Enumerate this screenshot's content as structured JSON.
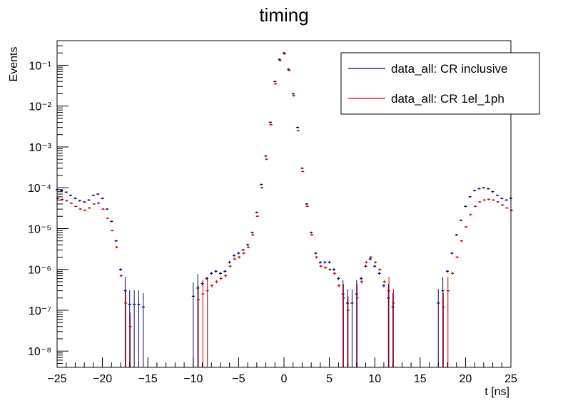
{
  "chart_data": {
    "type": "line",
    "title": "timing",
    "xlabel": "t [ns]",
    "ylabel": "Events",
    "xlim": [
      -25,
      25
    ],
    "ylim": [
      4e-09,
      0.4
    ],
    "yscale": "log",
    "grid": false,
    "legend_position": "top-right",
    "x_tick_labels": [
      "−25",
      "−20",
      "−15",
      "−10",
      "−5",
      "0",
      "5",
      "10",
      "15",
      "20",
      "25"
    ],
    "x_tick_values": [
      -25,
      -20,
      -15,
      -10,
      -5,
      0,
      5,
      10,
      15,
      20,
      25
    ],
    "y_tick_decades": [
      -8,
      -7,
      -6,
      -5,
      -4,
      -3,
      -2,
      -1
    ],
    "y_tick_labels": [
      "10⁻⁸",
      "10⁻⁷",
      "10⁻⁶",
      "10⁻⁵",
      "10⁻⁴",
      "10⁻³",
      "10⁻²",
      "10⁻¹"
    ],
    "series": [
      {
        "name": "data_all: CR inclusive",
        "color": "#000080",
        "x": [
          -25,
          -24.5,
          -24,
          -23.5,
          -23,
          -22.5,
          -22,
          -21.5,
          -21,
          -20.5,
          -20,
          -19.5,
          -19,
          -18.5,
          -18,
          -17.5,
          -17,
          -16.5,
          -16,
          -15.5,
          -10,
          -9.5,
          -9,
          -8.5,
          -8,
          -7.5,
          -7,
          -6.5,
          -6,
          -5.5,
          -5,
          -4.5,
          -4,
          -3.5,
          -3,
          -2.5,
          -2,
          -1.5,
          -1,
          -0.5,
          0,
          0.5,
          1,
          1.5,
          2,
          2.5,
          3,
          3.5,
          4,
          4.5,
          5,
          5.5,
          6,
          6.5,
          7,
          7.5,
          8,
          8.5,
          9,
          9.5,
          10,
          10.5,
          11,
          11.5,
          12,
          17,
          17.5,
          18,
          18.5,
          19,
          19.5,
          20,
          20.5,
          21,
          21.5,
          22,
          22.5,
          23,
          23.5,
          24,
          24.5,
          25
        ],
        "y": [
          9e-05,
          8.5e-05,
          7.8e-05,
          6.5e-05,
          5.5e-05,
          4.8e-05,
          4.5e-05,
          5e-05,
          6.5e-05,
          7e-05,
          5.5e-05,
          3e-05,
          1.5e-05,
          5e-06,
          1e-06,
          3e-07,
          1.4e-07,
          1.4e-07,
          1.4e-07,
          1.2e-07,
          2.2e-07,
          3.5e-07,
          4.5e-07,
          6e-07,
          8e-07,
          9e-07,
          8e-07,
          9e-07,
          1.5e-06,
          2.2e-06,
          2.5e-06,
          3e-06,
          4e-06,
          8e-06,
          2.5e-05,
          0.00012,
          0.0006,
          0.004,
          0.04,
          0.14,
          0.2,
          0.08,
          0.02,
          0.003,
          0.0003,
          4e-05,
          8e-06,
          2.5e-06,
          1.5e-06,
          1.5e-06,
          1.5e-06,
          1e-06,
          6e-07,
          2.5e-07,
          1.5e-07,
          1.5e-07,
          2.5e-07,
          6e-07,
          1.2e-06,
          1.8e-06,
          1.2e-06,
          8e-07,
          4e-07,
          2e-07,
          1.2e-07,
          1.5e-07,
          3e-07,
          9e-07,
          2.5e-06,
          7e-06,
          1.6e-05,
          3.5e-05,
          6e-05,
          8.5e-05,
          9.5e-05,
          0.0001,
          9.5e-05,
          8e-05,
          6.5e-05,
          5.5e-05,
          5e-05,
          5.5e-05
        ]
      },
      {
        "name": "data_all: CR 1el_1ph",
        "color": "#cc0000",
        "x": [
          -25,
          -24.5,
          -24,
          -23.5,
          -23,
          -22.5,
          -22,
          -21.5,
          -21,
          -20.5,
          -20,
          -19.5,
          -19,
          -18.5,
          -18,
          -17.5,
          -17,
          -9.5,
          -9,
          -8.5,
          -8,
          -7.5,
          -7,
          -6.5,
          -6,
          -5.5,
          -5,
          -4.5,
          -4,
          -3.5,
          -3,
          -2.5,
          -2,
          -1.5,
          -1,
          -0.5,
          0,
          0.5,
          1,
          1.5,
          2,
          2.5,
          3,
          3.5,
          4,
          4.5,
          5,
          5.5,
          6,
          6.5,
          7,
          8,
          8.5,
          9,
          9.5,
          10,
          10.5,
          11,
          11.5,
          12,
          17.5,
          18,
          18.5,
          19,
          19.5,
          20,
          20.5,
          21,
          21.5,
          22,
          22.5,
          23,
          23.5,
          24,
          24.5,
          25
        ],
        "y": [
          5.5e-05,
          5.2e-05,
          4.8e-05,
          4.2e-05,
          3.5e-05,
          3e-05,
          2.8e-05,
          3.2e-05,
          4e-05,
          4.2e-05,
          3e-05,
          1.8e-05,
          9e-06,
          3.5e-06,
          7e-07,
          1.5e-07,
          4e-08,
          1.8e-07,
          2.5e-07,
          3e-07,
          4e-07,
          5e-07,
          6e-07,
          7e-07,
          1.2e-06,
          1.8e-06,
          2e-06,
          2.5e-06,
          3.5e-06,
          7e-06,
          2e-05,
          0.0001,
          0.0005,
          0.0035,
          0.035,
          0.13,
          0.19,
          0.075,
          0.018,
          0.0025,
          0.00025,
          3.5e-05,
          7e-06,
          2e-06,
          1.2e-06,
          1.1e-06,
          1e-06,
          8e-07,
          4e-07,
          2e-07,
          1e-07,
          2e-07,
          5e-07,
          1.5e-06,
          2e-06,
          1.5e-06,
          1e-06,
          5e-07,
          3e-07,
          1.5e-07,
          1.2e-07,
          3e-07,
          8e-07,
          2e-06,
          5e-06,
          1.1e-05,
          2.2e-05,
          3.5e-05,
          4.5e-05,
          5e-05,
          5.2e-05,
          5e-05,
          4.5e-05,
          3.8e-05,
          3.2e-05,
          2.8e-05
        ]
      }
    ]
  }
}
